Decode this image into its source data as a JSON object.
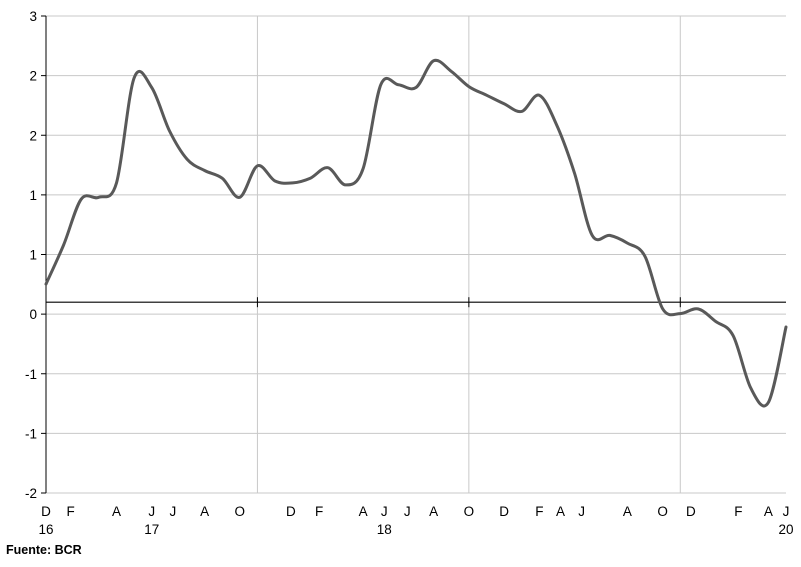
{
  "chart_data": {
    "type": "line",
    "title": "",
    "xlabel": "",
    "ylabel": "",
    "ylim": [
      -2,
      3
    ],
    "y_tick_labels": [
      "3",
      "2",
      "2",
      "1",
      "1",
      "0",
      "-1",
      "-1",
      "-2"
    ],
    "x_tick_labels": [
      {
        "month": "D",
        "year": "16"
      },
      {
        "month": "F",
        "year": ""
      },
      {
        "month": "A",
        "year": ""
      },
      {
        "month": "J",
        "year": "17"
      },
      {
        "month": "J",
        "year": ""
      },
      {
        "month": "A",
        "year": ""
      },
      {
        "month": "O",
        "year": ""
      },
      {
        "month": "D",
        "year": ""
      },
      {
        "month": "F",
        "year": ""
      },
      {
        "month": "A",
        "year": ""
      },
      {
        "month": "J",
        "year": "18"
      },
      {
        "month": "J",
        "year": ""
      },
      {
        "month": "A",
        "year": ""
      },
      {
        "month": "O",
        "year": ""
      },
      {
        "month": "D",
        "year": ""
      },
      {
        "month": "F",
        "year": ""
      },
      {
        "month": "A",
        "year": ""
      },
      {
        "month": "J",
        "year": ""
      },
      {
        "month": "A",
        "year": ""
      },
      {
        "month": "O",
        "year": ""
      },
      {
        "month": "D",
        "year": ""
      },
      {
        "month": "F",
        "year": ""
      },
      {
        "month": "A",
        "year": ""
      },
      {
        "month": "J",
        "year": "20"
      }
    ],
    "grid": {
      "horizontal": true,
      "vertical_at_year_boundaries": true
    },
    "legend": "none",
    "series": [
      {
        "color": "#595959",
        "x": [
          "2016-12",
          "2017-01",
          "2017-02",
          "2017-03",
          "2017-04",
          "2017-05",
          "2017-06",
          "2017-07",
          "2017-08",
          "2017-09",
          "2017-10",
          "2017-11",
          "2017-12",
          "2018-01",
          "2018-02",
          "2018-03",
          "2018-04",
          "2018-05",
          "2018-06",
          "2018-07",
          "2018-08",
          "2018-09",
          "2018-10",
          "2018-11",
          "2018-12",
          "2019-01",
          "2019-02",
          "2019-03",
          "2019-04",
          "2019-05",
          "2019-06",
          "2019-07",
          "2019-08",
          "2019-09",
          "2019-10",
          "2019-11",
          "2019-12",
          "2020-01",
          "2020-02",
          "2020-03",
          "2020-04",
          "2020-05",
          "2020-06"
        ],
        "values": [
          0.19,
          0.6,
          1.08,
          1.1,
          1.25,
          2.35,
          2.25,
          1.8,
          1.5,
          1.38,
          1.3,
          1.1,
          1.43,
          1.27,
          1.25,
          1.3,
          1.41,
          1.23,
          1.4,
          2.28,
          2.28,
          2.25,
          2.53,
          2.42,
          2.26,
          2.17,
          2.08,
          2.0,
          2.17,
          1.85,
          1.35,
          0.7,
          0.7,
          0.62,
          0.48,
          -0.07,
          -0.12,
          -0.07,
          -0.2,
          -0.35,
          -0.9,
          -1.05,
          -0.26
        ]
      }
    ]
  },
  "source_text": "Fuente: BCR"
}
